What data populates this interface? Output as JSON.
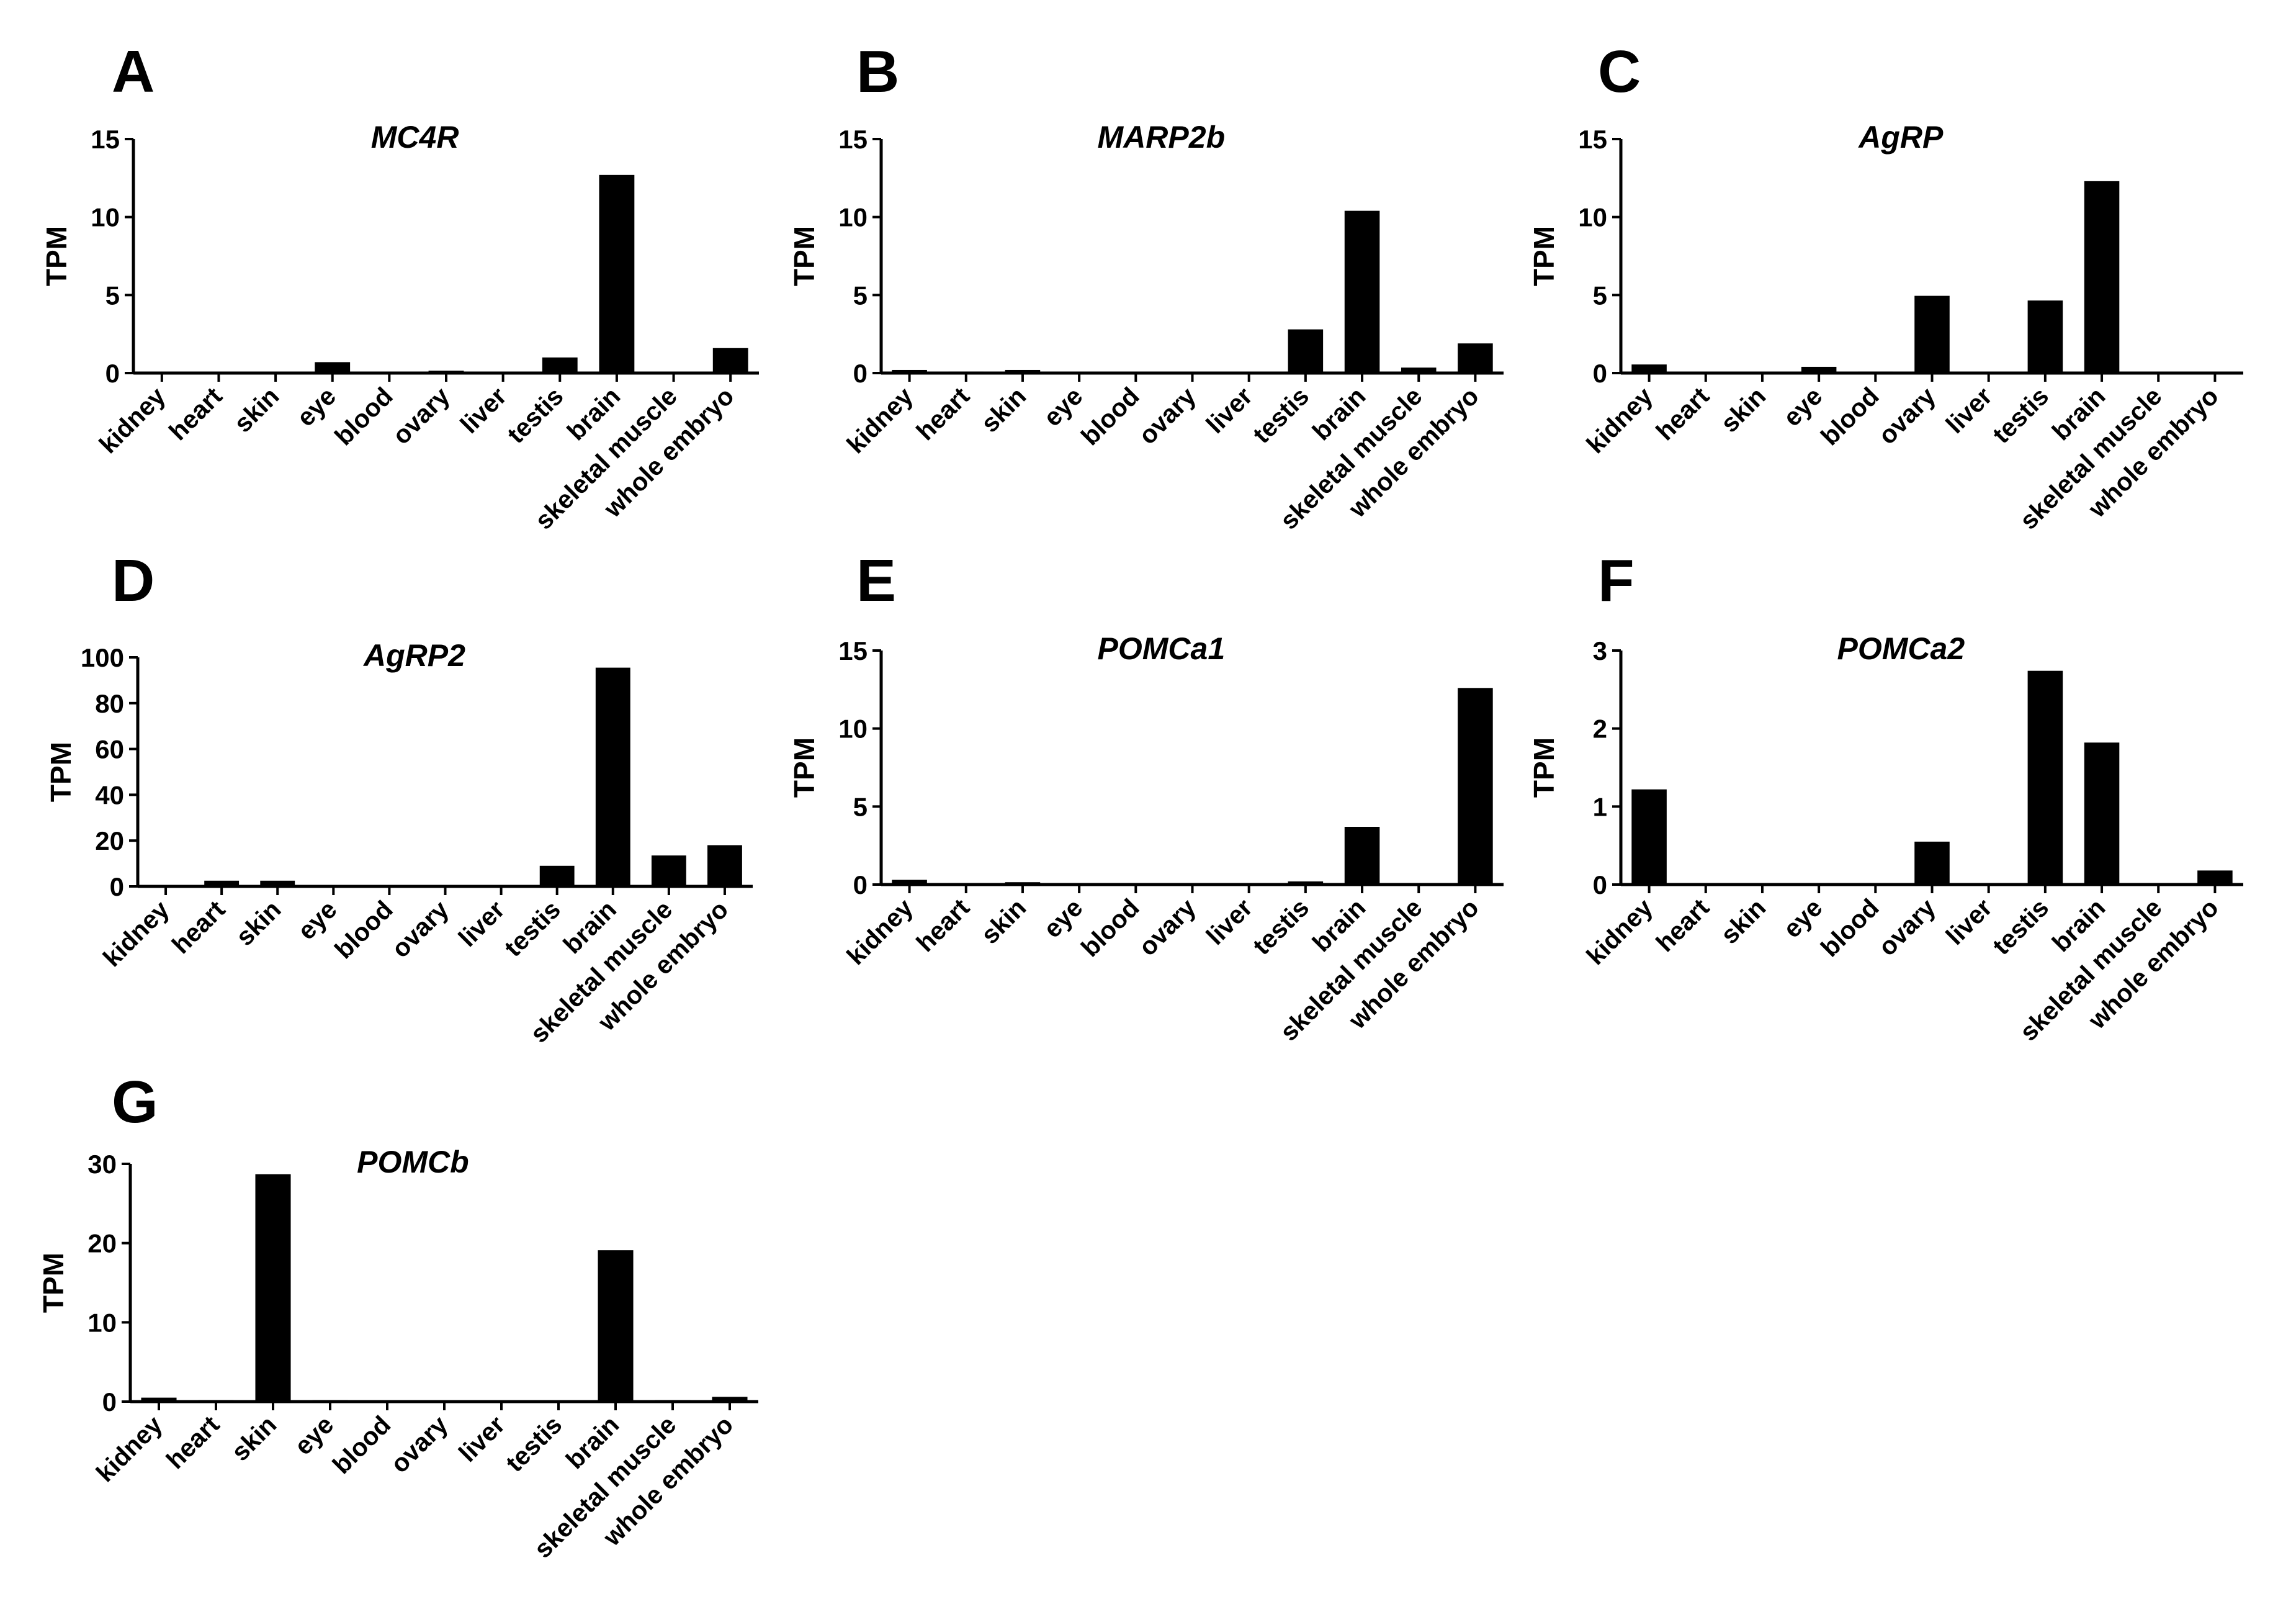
{
  "colors": {
    "bar": "#000000",
    "axis": "#000000",
    "background": "#ffffff"
  },
  "chart_data": [
    {
      "panel": "A",
      "type": "bar",
      "title": "MC4R",
      "xlabel": "",
      "ylabel": "TPM",
      "ylim": [
        0,
        15
      ],
      "yticks": [
        0,
        5,
        10,
        15
      ],
      "categories": [
        "kidney",
        "heart",
        "skin",
        "eye",
        "blood",
        "ovary",
        "liver",
        "testis",
        "brain",
        "skeletal muscle",
        "whole embryo"
      ],
      "values": [
        0,
        0,
        0,
        0.7,
        0,
        0.15,
        0,
        1.0,
        12.7,
        0,
        1.6
      ]
    },
    {
      "panel": "B",
      "type": "bar",
      "title": "MARP2b",
      "xlabel": "",
      "ylabel": "TPM",
      "ylim": [
        0,
        15
      ],
      "yticks": [
        0,
        5,
        10,
        15
      ],
      "categories": [
        "kidney",
        "heart",
        "skin",
        "eye",
        "blood",
        "ovary",
        "liver",
        "testis",
        "brain",
        "skeletal muscle",
        "whole embryo"
      ],
      "values": [
        0.2,
        0.1,
        0.2,
        0.05,
        0.08,
        0.05,
        0,
        2.8,
        10.4,
        0.35,
        1.9
      ]
    },
    {
      "panel": "C",
      "type": "bar",
      "title": "AgRP",
      "xlabel": "",
      "ylabel": "TPM",
      "ylim": [
        0,
        15
      ],
      "yticks": [
        0,
        5,
        10,
        15
      ],
      "categories": [
        "kidney",
        "heart",
        "skin",
        "eye",
        "blood",
        "ovary",
        "liver",
        "testis",
        "brain",
        "skeletal muscle",
        "whole embryo"
      ],
      "values": [
        0.55,
        0,
        0,
        0.4,
        0.1,
        4.95,
        0,
        4.65,
        12.3,
        0,
        0
      ]
    },
    {
      "panel": "D",
      "type": "bar",
      "title": "AgRP2",
      "xlabel": "",
      "ylabel": "TPM",
      "ylim": [
        0,
        100
      ],
      "yticks": [
        0,
        20,
        40,
        60,
        80,
        100
      ],
      "categories": [
        "kidney",
        "heart",
        "skin",
        "eye",
        "blood",
        "ovary",
        "liver",
        "testis",
        "brain",
        "skeletal muscle",
        "whole embryo"
      ],
      "values": [
        0,
        2.5,
        2.5,
        0,
        0,
        0,
        0,
        9,
        95.5,
        13.5,
        18
      ]
    },
    {
      "panel": "E",
      "type": "bar",
      "title": "POMCa1",
      "xlabel": "",
      "ylabel": "TPM",
      "ylim": [
        0,
        15
      ],
      "yticks": [
        0,
        5,
        10,
        15
      ],
      "categories": [
        "kidney",
        "heart",
        "skin",
        "eye",
        "blood",
        "ovary",
        "liver",
        "testis",
        "brain",
        "skeletal muscle",
        "whole embryo"
      ],
      "values": [
        0.3,
        0.1,
        0.15,
        0.05,
        0.05,
        0.05,
        0.05,
        0.2,
        3.7,
        0.05,
        12.6
      ]
    },
    {
      "panel": "F",
      "type": "bar",
      "title": "POMCa2",
      "xlabel": "",
      "ylabel": "TPM",
      "ylim": [
        0,
        3
      ],
      "yticks": [
        0,
        1,
        2,
        3
      ],
      "categories": [
        "kidney",
        "heart",
        "skin",
        "eye",
        "blood",
        "ovary",
        "liver",
        "testis",
        "brain",
        "skeletal muscle",
        "whole embryo"
      ],
      "values": [
        1.22,
        0,
        0,
        0,
        0.02,
        0.55,
        0,
        2.74,
        1.82,
        0,
        0.18
      ]
    },
    {
      "panel": "G",
      "type": "bar",
      "title": "POMCb",
      "xlabel": "",
      "ylabel": "TPM",
      "ylim": [
        0,
        30
      ],
      "yticks": [
        0,
        10,
        20,
        30
      ],
      "categories": [
        "kidney",
        "heart",
        "skin",
        "eye",
        "blood",
        "ovary",
        "liver",
        "testis",
        "brain",
        "skeletal muscle",
        "whole embryo"
      ],
      "values": [
        0.5,
        0.2,
        28.7,
        0.2,
        0.05,
        0.15,
        0.05,
        0.1,
        19.1,
        0.2,
        0.6
      ]
    }
  ]
}
